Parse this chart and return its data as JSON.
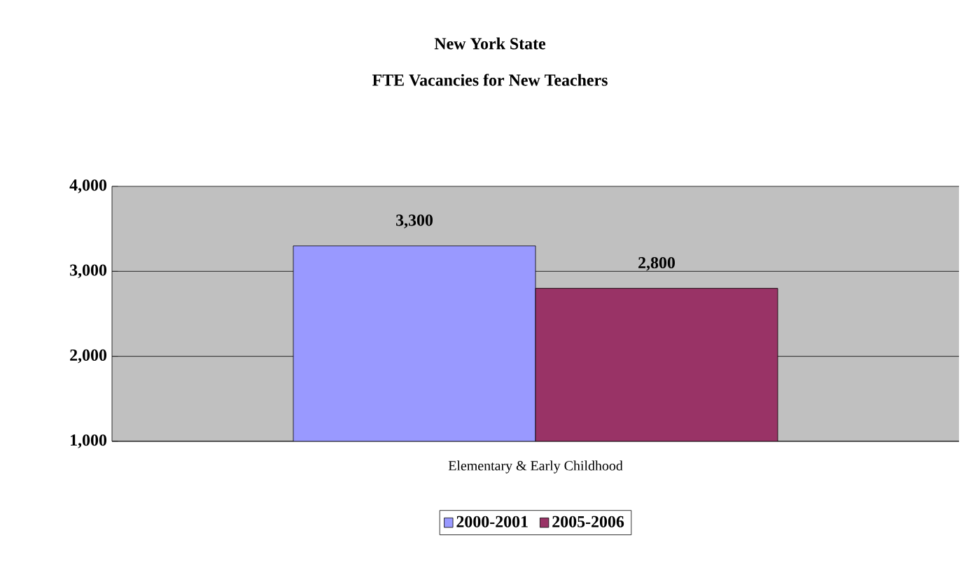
{
  "chart_data": {
    "type": "bar",
    "title": "New York State",
    "subtitle": "FTE Vacancies for New Teachers",
    "categories": [
      "Elementary & Early Childhood"
    ],
    "series": [
      {
        "name": "2000-2001",
        "color": "#9999ff",
        "values": [
          3300
        ],
        "value_labels": [
          "3,300"
        ]
      },
      {
        "name": "2005-2006",
        "color": "#993366",
        "values": [
          2800
        ],
        "value_labels": [
          "2,800"
        ]
      }
    ],
    "ylim": [
      1000,
      4000
    ],
    "yticks": [
      {
        "value": 1000,
        "label": "1,000"
      },
      {
        "value": 2000,
        "label": "2,000"
      },
      {
        "value": 3000,
        "label": "3,000"
      },
      {
        "value": 4000,
        "label": "4,000"
      }
    ],
    "grid": "y",
    "legend": "bottom"
  }
}
